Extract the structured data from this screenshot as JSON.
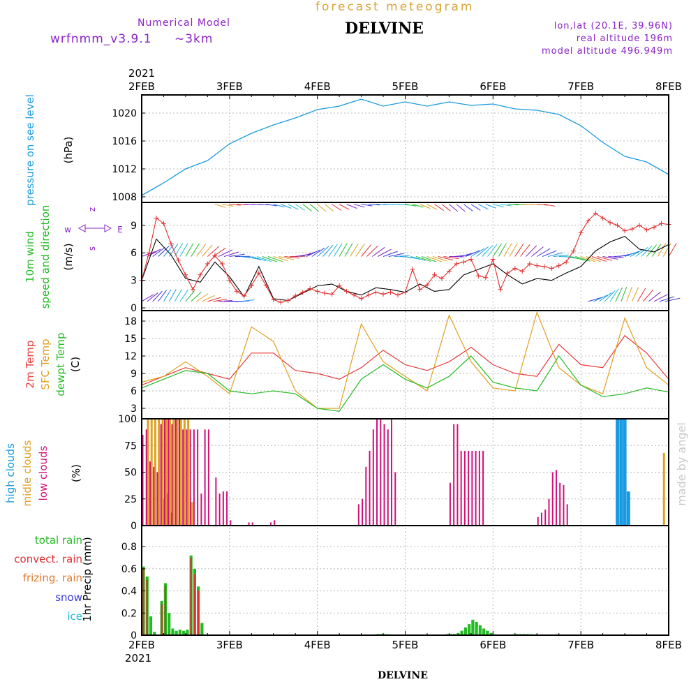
{
  "header": {
    "forecast_label": "forecast meteogram",
    "model_label": "Numerical Model",
    "model_name": "wrfnmm_v3.9.1",
    "resolution": "~3km",
    "location": "DELVINE",
    "lonlat": "lon,lat (20.1E, 39.96N)",
    "real_altitude": "real altitude 196m",
    "model_altitude": "model altitude  496.949m",
    "watermark": "made by angel",
    "footer_location": "DELVINE"
  },
  "colors": {
    "pressure": "#1a9ae0",
    "wind_speed": "#e03030",
    "wind_gust": "#000000",
    "wind_label": "#22bb22",
    "wind_dir_label": "#8a22c8",
    "temp_2m": "#e83a3a",
    "temp_sfc": "#e0a020",
    "dewpoint": "#22bb22",
    "high_clouds": "#1a9ae0",
    "middle_clouds": "#e0a020",
    "low_clouds": "#d0107a",
    "total_rain": "#22bb22",
    "convect_rain": "#e03030",
    "frizing_rain": "#e07a30",
    "snow": "#3a3ae0",
    "ice": "#20b8d8",
    "header_orange": "#d9a53a",
    "header_purple": "#8a22c8",
    "frame": "#000000"
  },
  "chart_data": [
    {
      "type": "line",
      "panel": "pressure",
      "x_axis": {
        "top_year": "2021",
        "bottom_year": "2021",
        "ticks": [
          "2FEB",
          "3FEB",
          "4FEB",
          "5FEB",
          "6FEB",
          "7FEB",
          "8FEB"
        ],
        "xlim": [
          0,
          144
        ]
      },
      "ylabels": [
        "pressure on see level",
        "(hPa)"
      ],
      "yticks": [
        1008,
        1012,
        1016,
        1020
      ],
      "ylim": [
        1007.2,
        1022.6
      ],
      "series": [
        {
          "x": [
            0,
            6,
            12,
            18,
            24,
            30,
            36,
            42,
            48,
            54,
            60,
            66,
            72,
            78,
            84,
            90,
            96,
            102,
            108,
            114,
            120,
            126,
            132,
            138,
            144
          ],
          "values": [
            1008.2,
            1010.0,
            1012.0,
            1013.2,
            1015.6,
            1017.1,
            1018.3,
            1019.3,
            1020.5,
            1021.0,
            1022.0,
            1021.0,
            1021.6,
            1021.0,
            1021.6,
            1021.1,
            1021.3,
            1020.6,
            1020.4,
            1019.8,
            1018.2,
            1015.8,
            1013.8,
            1013.0,
            1011.2
          ]
        }
      ]
    },
    {
      "type": "line",
      "panel": "wind",
      "ylabels": [
        "10m wind",
        "speed and direction",
        "(m/s)"
      ],
      "compass": {
        "west": "w",
        "east": "E",
        "north": "z",
        "south": "s"
      },
      "yticks": [
        0,
        3,
        6,
        9
      ],
      "ylim": [
        -0.3,
        11.5
      ],
      "series": [
        {
          "name": "",
          "style": "cross-markers",
          "x": [
            0,
            2,
            4,
            6,
            8,
            10,
            12,
            14,
            16,
            18,
            20,
            22,
            24,
            26,
            28,
            30,
            32,
            34,
            36,
            38,
            40,
            42,
            44,
            46,
            48,
            50,
            52,
            54,
            56,
            58,
            60,
            62,
            64,
            66,
            68,
            70,
            72,
            74,
            76,
            78,
            80,
            82,
            84,
            86,
            88,
            90,
            92,
            94,
            96,
            98,
            100,
            102,
            104,
            106,
            108,
            110,
            112,
            114,
            116,
            118,
            120,
            122,
            124,
            126,
            128,
            130,
            132,
            134,
            136,
            138,
            140,
            142,
            144
          ],
          "values": [
            3.0,
            6.0,
            9.8,
            9.2,
            7.0,
            5.2,
            3.6,
            2.0,
            3.6,
            4.8,
            5.7,
            4.8,
            3.0,
            1.8,
            1.3,
            2.4,
            3.8,
            2.4,
            0.9,
            0.6,
            0.8,
            1.3,
            1.7,
            2.1,
            1.8,
            1.6,
            1.5,
            2.4,
            1.8,
            1.4,
            1.0,
            1.4,
            1.7,
            1.5,
            1.7,
            1.4,
            1.7,
            4.2,
            2.0,
            2.5,
            3.6,
            3.2,
            4.0,
            4.8,
            5.0,
            5.3,
            3.5,
            3.3,
            5.3,
            2.0,
            3.8,
            4.3,
            4.0,
            4.8,
            4.6,
            4.5,
            4.3,
            4.6,
            5.0,
            6.2,
            8.2,
            9.5,
            10.3,
            9.8,
            9.3,
            9.0,
            8.4,
            8.6,
            9.0,
            8.5,
            8.8,
            9.2,
            9.1
          ]
        },
        {
          "name": "",
          "style": "line",
          "x": [
            0,
            4,
            8,
            12,
            16,
            20,
            24,
            28,
            32,
            36,
            40,
            44,
            48,
            52,
            56,
            60,
            64,
            68,
            72,
            76,
            80,
            84,
            88,
            92,
            96,
            100,
            104,
            108,
            112,
            116,
            120,
            124,
            128,
            132,
            136,
            140,
            144
          ],
          "values": [
            3.0,
            7.5,
            5.8,
            3.2,
            2.8,
            5.0,
            3.4,
            1.2,
            4.5,
            1.0,
            0.8,
            1.6,
            2.4,
            2.6,
            1.8,
            1.4,
            2.2,
            2.0,
            1.7,
            2.6,
            1.8,
            2.0,
            3.6,
            4.2,
            4.8,
            3.6,
            2.6,
            3.2,
            3.0,
            3.8,
            4.5,
            6.2,
            7.2,
            7.8,
            6.4,
            6.1,
            6.9
          ]
        }
      ]
    },
    {
      "type": "line",
      "panel": "temperature",
      "ylabels": [
        "2m Temp",
        "SFC Temp",
        "dewpt Temp",
        "(C)"
      ],
      "yticks": [
        3,
        6,
        9,
        12,
        15,
        18
      ],
      "ylim": [
        1.2,
        19.8
      ],
      "series": [
        {
          "name": "2m Temp",
          "x": [
            0,
            6,
            12,
            18,
            24,
            30,
            36,
            42,
            48,
            54,
            60,
            66,
            72,
            78,
            84,
            90,
            96,
            102,
            108,
            114,
            120,
            126,
            132,
            138,
            144
          ],
          "values": [
            7.0,
            8.5,
            10.0,
            9.0,
            8.0,
            12.5,
            12.5,
            9.5,
            9.0,
            8.0,
            10.0,
            13.0,
            10.5,
            9.5,
            11.0,
            13.5,
            10.5,
            9.0,
            8.5,
            14.0,
            10.5,
            10.0,
            15.5,
            12.5,
            8.0
          ]
        },
        {
          "name": "SFC Temp",
          "x": [
            0,
            6,
            12,
            18,
            24,
            30,
            36,
            42,
            48,
            54,
            60,
            66,
            72,
            78,
            84,
            90,
            96,
            102,
            108,
            114,
            120,
            126,
            132,
            138,
            144
          ],
          "values": [
            7.5,
            8.5,
            11.0,
            8.5,
            5.5,
            17.0,
            14.5,
            6.0,
            3.0,
            3.0,
            17.5,
            11.0,
            8.5,
            6.0,
            19.0,
            11.0,
            6.5,
            6.0,
            19.5,
            10.0,
            7.0,
            5.5,
            18.5,
            10.0,
            7.0
          ]
        },
        {
          "name": "dewpt Temp",
          "x": [
            0,
            6,
            12,
            18,
            24,
            30,
            36,
            42,
            48,
            54,
            60,
            66,
            72,
            78,
            84,
            90,
            96,
            102,
            108,
            114,
            120,
            126,
            132,
            138,
            144
          ],
          "values": [
            6.5,
            8.0,
            9.5,
            9.0,
            6.0,
            5.5,
            6.0,
            5.5,
            3.0,
            2.5,
            8.0,
            10.5,
            8.0,
            6.5,
            8.5,
            12.0,
            7.5,
            6.5,
            6.0,
            12.0,
            7.0,
            5.0,
            5.5,
            6.5,
            5.8
          ]
        }
      ]
    },
    {
      "type": "bar",
      "panel": "clouds",
      "ylabels": [
        "high  clouds",
        "midle clouds",
        "low   clouds",
        "(%)"
      ],
      "yticks": [
        0,
        25,
        50,
        75,
        100
      ],
      "ylim": [
        0,
        100
      ],
      "series": [
        {
          "name": "high  clouds",
          "x": [
            6,
            7,
            8,
            130,
            131,
            132,
            133
          ],
          "values": [
            25,
            30,
            12,
            100,
            100,
            100,
            32
          ]
        },
        {
          "name": "midle clouds",
          "x": [
            2,
            3,
            4,
            5,
            6,
            7,
            8,
            9,
            10,
            11,
            12,
            13,
            14,
            143
          ],
          "values": [
            100,
            100,
            100,
            100,
            100,
            100,
            100,
            100,
            100,
            100,
            100,
            100,
            22,
            68
          ]
        },
        {
          "name": "low   clouds",
          "x": [
            0,
            1,
            2,
            3,
            4,
            5,
            6,
            7,
            8,
            9,
            10,
            11,
            12,
            13,
            14,
            15,
            16,
            17,
            18,
            20,
            21,
            22,
            23,
            24,
            29,
            30,
            35,
            36,
            59,
            60,
            61,
            62,
            63,
            64,
            65,
            66,
            67,
            68,
            69,
            84,
            85,
            86,
            87,
            88,
            89,
            90,
            91,
            92,
            93,
            108,
            109,
            110,
            111,
            112,
            113,
            114,
            115,
            116
          ],
          "values": [
            85,
            90,
            60,
            55,
            50,
            95,
            100,
            100,
            95,
            100,
            100,
            90,
            90,
            90,
            90,
            90,
            30,
            90,
            90,
            45,
            30,
            32,
            32,
            5,
            3,
            3,
            3,
            5,
            20,
            25,
            55,
            70,
            90,
            100,
            100,
            95,
            90,
            100,
            50,
            40,
            95,
            95,
            70,
            70,
            70,
            70,
            70,
            70,
            70,
            8,
            12,
            15,
            25,
            50,
            52,
            40,
            38,
            20
          ]
        }
      ]
    },
    {
      "type": "bar",
      "panel": "precipitation",
      "ylabels": [
        "1hr Precip (mm)"
      ],
      "legend": [
        "total      rain",
        "convect. rain",
        "frizing. rain",
        "snow",
        "ice"
      ],
      "yticks": [
        0,
        0.2,
        0.4,
        0.6,
        0.8
      ],
      "ylim": [
        0,
        0.99
      ],
      "series": [
        {
          "name": "total      rain",
          "x": [
            0,
            1,
            2,
            3,
            4,
            5,
            6,
            7,
            8,
            9,
            10,
            11,
            12,
            13,
            14,
            15,
            16,
            17,
            18,
            19,
            20,
            21,
            62,
            63,
            64,
            65,
            66,
            67,
            68,
            69,
            70,
            71,
            72,
            73,
            74,
            81,
            82,
            83,
            84,
            85,
            86,
            87,
            88,
            89,
            90,
            91,
            92,
            93,
            94,
            95,
            100,
            101,
            102,
            103,
            104,
            105,
            106,
            107,
            108,
            109,
            110,
            111,
            112,
            113,
            114,
            115
          ],
          "values": [
            0.62,
            0.53,
            0.17,
            0.03,
            0.0,
            0.31,
            0.47,
            0.2,
            0.06,
            0.04,
            0.05,
            0.04,
            0.05,
            0.72,
            0.6,
            0.44,
            0.11,
            0.0,
            0.0,
            0.0,
            0.0,
            0.0,
            0.003,
            0.007,
            0.01,
            0.01,
            0.01,
            0.008,
            0.005,
            0.003,
            0.002,
            0.0,
            0.002,
            0.003,
            0.002,
            0.003,
            0.006,
            0.01,
            0.01,
            0.01,
            0.02,
            0.04,
            0.07,
            0.1,
            0.14,
            0.12,
            0.09,
            0.06,
            0.04,
            0.02,
            0.006,
            0.008,
            0.01,
            0.01,
            0.01,
            0.01,
            0.008,
            0.007,
            0.006,
            0.004,
            0.003,
            0.005,
            0.006,
            0.008,
            0.006,
            0.003
          ]
        },
        {
          "name": "convect. rain",
          "x": [
            0,
            1,
            5,
            6,
            13,
            14,
            15
          ],
          "values": [
            0.6,
            0.5,
            0.28,
            0.45,
            0.7,
            0.55,
            0.4
          ]
        }
      ]
    }
  ]
}
